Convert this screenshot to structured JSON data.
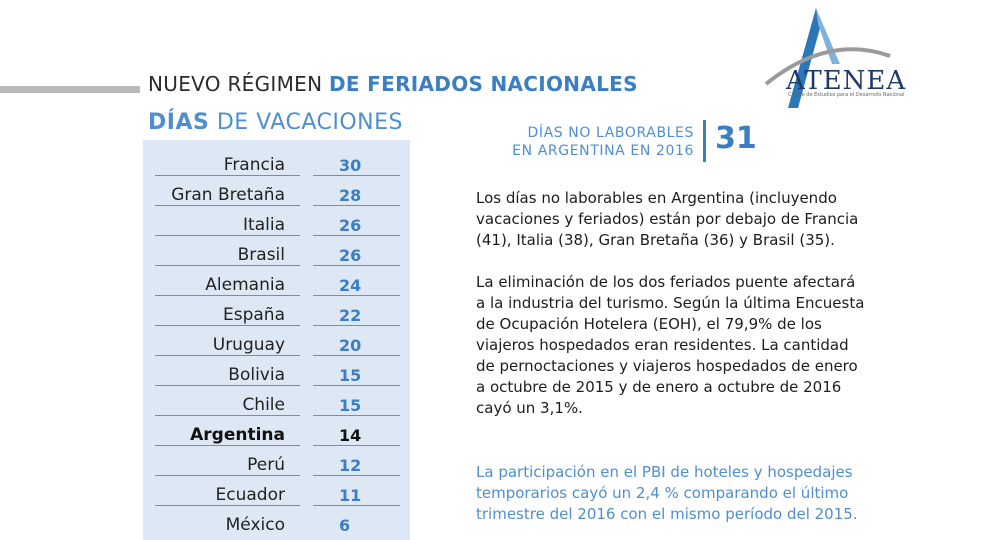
{
  "header": {
    "title_plain": "NUEVO RÉGIMEN ",
    "title_bold": "DE FERIADOS NACIONALES",
    "subtitle_bold": "DÍAS",
    "subtitle_plain": " DE VACACIONES"
  },
  "logo": {
    "name": "ATENEA",
    "tagline": "Centro de Estudios para el Desarrollo Nacional",
    "icon": "triangle-arc-logo"
  },
  "vacation_table": [
    {
      "country": "Francia",
      "days": "30"
    },
    {
      "country": "Gran Bretaña",
      "days": "28"
    },
    {
      "country": "Italia",
      "days": "26"
    },
    {
      "country": "Brasil",
      "days": "26"
    },
    {
      "country": "Alemania",
      "days": "24"
    },
    {
      "country": "España",
      "days": "22"
    },
    {
      "country": "Uruguay",
      "days": "20"
    },
    {
      "country": "Bolivia",
      "days": "15"
    },
    {
      "country": "Chile",
      "days": "15"
    },
    {
      "country": "Argentina",
      "days": "14"
    },
    {
      "country": "Perú",
      "days": "12"
    },
    {
      "country": "Ecuador",
      "days": "11"
    },
    {
      "country": "México",
      "days": "6"
    }
  ],
  "stat": {
    "label_line1": "DÍAS NO LABORABLES",
    "label_line2": "EN ARGENTINA EN 2016",
    "value": "31"
  },
  "paragraphs": {
    "p1": [
      "Los días no laborables en Argentina (incluyendo",
      "vacaciones y feriados) están por debajo de Francia",
      "(41), Italia (38), Gran Bretaña (36) y Brasil (35)."
    ],
    "p2": [
      "La eliminación de los dos feriados puente afectará",
      "a la industria del turismo. Según la última Encuesta",
      "de Ocupación Hotelera (EOH), el 79,9% de los",
      "viajeros hospedados eran residentes. La cantidad",
      "de pernoctaciones y viajeros hospedados de enero",
      "a octubre de 2015 y de enero a octubre de 2016",
      "cayó un 3,1%."
    ],
    "p3": [
      "La participación en el PBI de hoteles y hospedajes",
      "temporarios cayó un 2,4 % comparando el último",
      "trimestre del 2016 con el mismo período del 2015."
    ]
  },
  "colors": {
    "accent": "#3b7ec2",
    "accent_light": "#4f8fcf",
    "table_bg": "#dde8f4",
    "logo_navy": "#1e3a6a"
  }
}
